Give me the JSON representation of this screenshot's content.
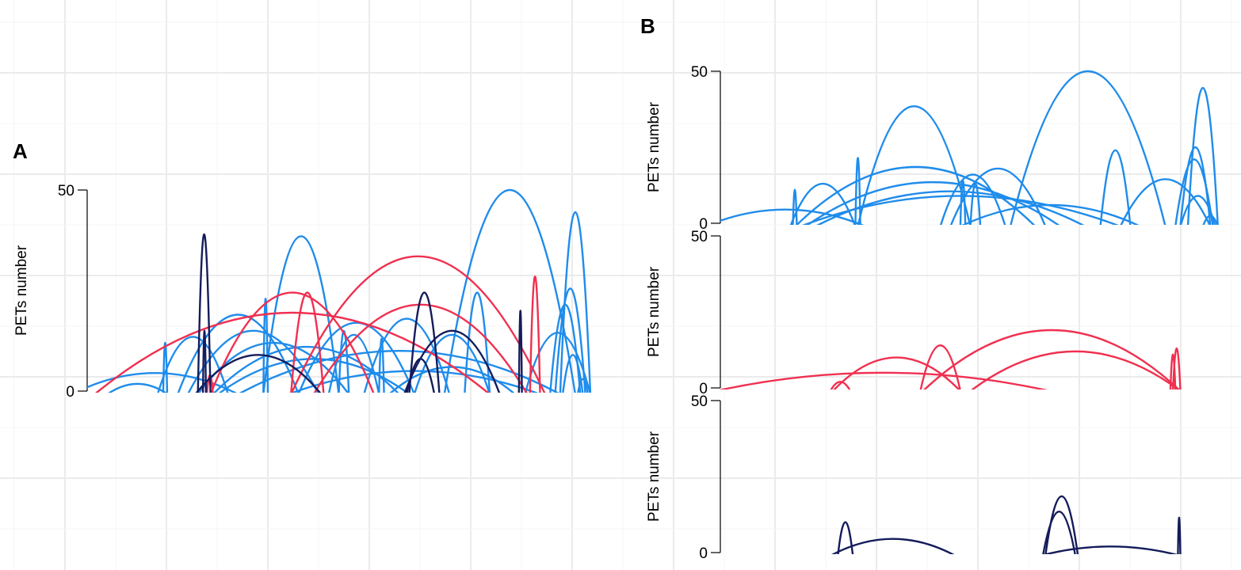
{
  "colors": {
    "blue": "#1f8ceb",
    "red": "#f03050",
    "navy": "#141c5a"
  },
  "chart_data": [
    {
      "type": "arc",
      "id": "A",
      "tag": "A",
      "ylabel": "PETs number",
      "ylim": [
        0,
        50
      ],
      "yticks": [
        "0",
        "50"
      ],
      "xlim": [
        0,
        100
      ],
      "arcs": [
        {
          "x1": -3,
          "x2": 30,
          "h": 4.5,
          "c": "blue"
        },
        {
          "x1": 4,
          "x2": 16,
          "h": 1.8,
          "c": "blue"
        },
        {
          "x1": 15.1,
          "x2": 15.9,
          "h": 12,
          "c": "blue"
        },
        {
          "x1": 14,
          "x2": 28,
          "h": 13.5,
          "c": "blue"
        },
        {
          "x1": 18,
          "x2": 42,
          "h": 19,
          "c": "blue"
        },
        {
          "x1": 20,
          "x2": 46,
          "h": 15,
          "c": "blue"
        },
        {
          "x1": 22,
          "x2": 52,
          "h": 12,
          "c": "blue"
        },
        {
          "x1": 25,
          "x2": 62,
          "h": 11,
          "c": "blue"
        },
        {
          "x1": 30,
          "x2": 94,
          "h": 10,
          "c": "blue"
        },
        {
          "x1": 35,
          "x2": 35.9,
          "h": 23,
          "c": "blue"
        },
        {
          "x1": 35,
          "x2": 50,
          "h": 38.5,
          "c": "blue"
        },
        {
          "x1": 42,
          "x2": 65,
          "h": 17,
          "c": "blue"
        },
        {
          "x1": 48,
          "x2": 58,
          "h": 14,
          "c": "blue"
        },
        {
          "x1": 50,
          "x2": 52,
          "h": 15,
          "c": "blue"
        },
        {
          "x1": 55,
          "x2": 72,
          "h": 18,
          "c": "blue"
        },
        {
          "x1": 58,
          "x2": 59,
          "h": 13,
          "c": "blue"
        },
        {
          "x1": 60,
          "x2": 85,
          "h": 6,
          "c": "blue"
        },
        {
          "x1": 65,
          "x2": 80,
          "h": 14,
          "c": "blue"
        },
        {
          "x1": 75,
          "x2": 80,
          "h": 24.5,
          "c": "blue"
        },
        {
          "x1": 71,
          "x2": 97,
          "h": 50,
          "c": "blue"
        },
        {
          "x1": 87,
          "x2": 100,
          "h": 14.5,
          "c": "blue"
        },
        {
          "x1": 94,
          "x2": 100,
          "h": 44.5,
          "c": "blue"
        },
        {
          "x1": 93,
          "x2": 99,
          "h": 25.5,
          "c": "blue"
        },
        {
          "x1": 92,
          "x2": 98,
          "h": 21.5,
          "c": "blue"
        },
        {
          "x1": 94.5,
          "x2": 98.5,
          "h": 9,
          "c": "blue"
        },
        {
          "x1": 97.5,
          "x2": 99.5,
          "h": 3,
          "c": "blue"
        },
        {
          "x1": 26,
          "x2": 64,
          "h": 8,
          "c": "blue"
        },
        {
          "x1": 40,
          "x2": 90,
          "h": 5,
          "c": "blue"
        },
        {
          "x1": 1.5,
          "x2": 80,
          "h": 19.5,
          "c": "red"
        },
        {
          "x1": 23.8,
          "x2": 25,
          "h": 4,
          "c": "red"
        },
        {
          "x1": 24.5,
          "x2": 57,
          "h": 24.5,
          "c": "red"
        },
        {
          "x1": 40.5,
          "x2": 47,
          "h": 24.5,
          "c": "red"
        },
        {
          "x1": 40.5,
          "x2": 91,
          "h": 33.5,
          "c": "red"
        },
        {
          "x1": 45,
          "x2": 87.5,
          "h": 21.5,
          "c": "red"
        },
        {
          "x1": 88,
          "x2": 90,
          "h": 28.5,
          "c": "red"
        },
        {
          "x1": 22,
          "x2": 24.5,
          "h": 39,
          "c": "navy"
        },
        {
          "x1": 23,
          "x2": 23.6,
          "h": 15,
          "c": "navy"
        },
        {
          "x1": 21.5,
          "x2": 46.5,
          "h": 9,
          "c": "navy"
        },
        {
          "x1": 64,
          "x2": 70,
          "h": 24.5,
          "c": "navy"
        },
        {
          "x1": 63.5,
          "x2": 69,
          "h": 8,
          "c": "navy"
        },
        {
          "x1": 63,
          "x2": 82,
          "h": 15,
          "c": "navy"
        },
        {
          "x1": 85.8,
          "x2": 86.4,
          "h": 20,
          "c": "navy"
        }
      ]
    },
    {
      "type": "arc",
      "id": "B1",
      "tag": "B",
      "ylabel": "PETs number",
      "ylim": [
        0,
        50
      ],
      "yticks": [
        "0",
        "50"
      ],
      "xlim": [
        0,
        100
      ],
      "arcs": [
        {
          "x1": -3,
          "x2": 29,
          "h": 4.5,
          "c": "blue"
        },
        {
          "x1": 14.5,
          "x2": 15.3,
          "h": 11,
          "c": "blue"
        },
        {
          "x1": 14,
          "x2": 27,
          "h": 13,
          "c": "blue"
        },
        {
          "x1": 15,
          "x2": 63,
          "h": 18.5,
          "c": "blue"
        },
        {
          "x1": 17,
          "x2": 68,
          "h": 13.5,
          "c": "blue"
        },
        {
          "x1": 19,
          "x2": 73,
          "h": 10.5,
          "c": "blue"
        },
        {
          "x1": 16,
          "x2": 80,
          "h": 9,
          "c": "blue"
        },
        {
          "x1": 27,
          "x2": 28,
          "h": 21.5,
          "c": "blue"
        },
        {
          "x1": 27.5,
          "x2": 50,
          "h": 38.5,
          "c": "blue"
        },
        {
          "x1": 44,
          "x2": 57,
          "h": 16,
          "c": "blue"
        },
        {
          "x1": 46,
          "x2": 65,
          "h": 18,
          "c": "blue"
        },
        {
          "x1": 48,
          "x2": 49,
          "h": 14,
          "c": "blue"
        },
        {
          "x1": 50,
          "x2": 52,
          "h": 13,
          "c": "blue"
        },
        {
          "x1": 48,
          "x2": 84,
          "h": 6,
          "c": "blue"
        },
        {
          "x1": 58,
          "x2": 89,
          "h": 50,
          "c": "blue"
        },
        {
          "x1": 76,
          "x2": 82,
          "h": 24,
          "c": "blue"
        },
        {
          "x1": 80,
          "x2": 98,
          "h": 14.5,
          "c": "blue"
        },
        {
          "x1": 93.5,
          "x2": 99.5,
          "h": 44.5,
          "c": "blue"
        },
        {
          "x1": 92,
          "x2": 98,
          "h": 25,
          "c": "blue"
        },
        {
          "x1": 91,
          "x2": 98.5,
          "h": 21,
          "c": "blue"
        },
        {
          "x1": 92,
          "x2": 99,
          "h": 9,
          "c": "blue"
        },
        {
          "x1": 96.5,
          "x2": 99.5,
          "h": 2.5,
          "c": "blue"
        }
      ]
    },
    {
      "type": "arc",
      "id": "B2",
      "tag": "",
      "ylabel": "PETs number",
      "ylim": [
        0,
        50
      ],
      "yticks": [
        "0",
        "50"
      ],
      "xlim": [
        0,
        100
      ],
      "arcs": [
        {
          "x1": -1,
          "x2": 66,
          "h": 5,
          "c": "red"
        },
        {
          "x1": 22,
          "x2": 26,
          "h": 2,
          "c": "red"
        },
        {
          "x1": 22.5,
          "x2": 48,
          "h": 10,
          "c": "red"
        },
        {
          "x1": 40,
          "x2": 48,
          "h": 14,
          "c": "red"
        },
        {
          "x1": 40.5,
          "x2": 92,
          "h": 19,
          "c": "red"
        },
        {
          "x1": 50,
          "x2": 92,
          "h": 12,
          "c": "red"
        },
        {
          "x1": 90,
          "x2": 91,
          "h": 11,
          "c": "red"
        },
        {
          "x1": 90.5,
          "x2": 92,
          "h": 13,
          "c": "red"
        }
      ]
    },
    {
      "type": "arc",
      "id": "B3",
      "tag": "",
      "ylabel": "PETs number",
      "ylim": [
        0,
        50
      ],
      "yticks": [
        "0",
        "50"
      ],
      "xlim": [
        0,
        100
      ],
      "arcs": [
        {
          "x1": 23.5,
          "x2": 26.5,
          "h": 10,
          "c": "navy"
        },
        {
          "x1": 22,
          "x2": 47,
          "h": 4.5,
          "c": "navy"
        },
        {
          "x1": 65,
          "x2": 71.5,
          "h": 18.5,
          "c": "navy"
        },
        {
          "x1": 64.5,
          "x2": 71,
          "h": 13.5,
          "c": "navy"
        },
        {
          "x1": 64,
          "x2": 92,
          "h": 2,
          "c": "navy"
        },
        {
          "x1": 91.5,
          "x2": 92,
          "h": 11.5,
          "c": "navy"
        }
      ]
    }
  ]
}
